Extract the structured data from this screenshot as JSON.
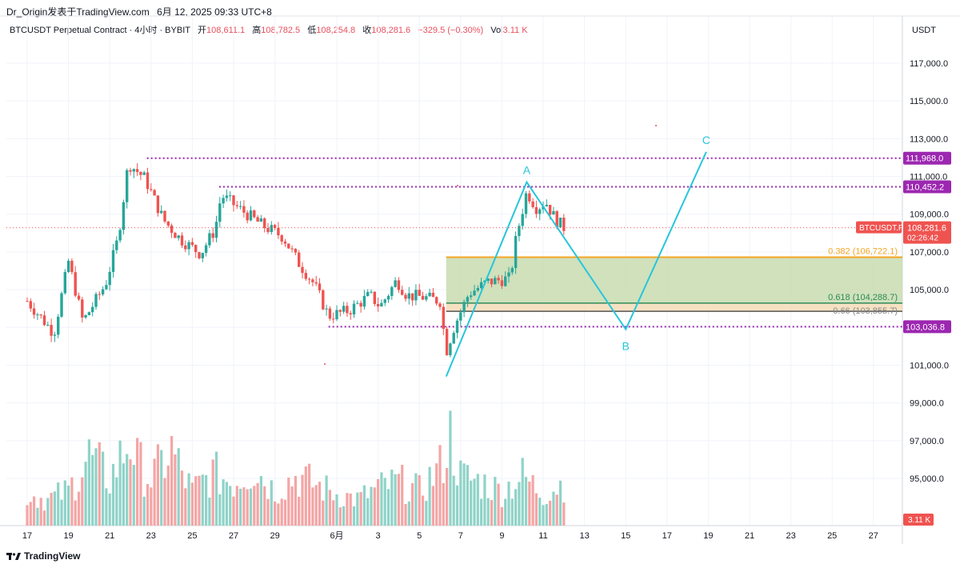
{
  "header": {
    "author": "Dr_Origin发表于TradingView.com",
    "datetime": "6月 12, 2025 09:33 UTC+8"
  },
  "legend": {
    "symbol": "BTCUSDT Perpetual Contract · 4小时 · BYBIT",
    "open_label": "开",
    "open": "108,611.1",
    "high_label": "高",
    "high": "108,782.5",
    "low_label": "低",
    "low": "108,254.8",
    "close_label": "收",
    "close": "108,281.6",
    "change": "−329.5 (−0.30%)",
    "vol_label": "Vol",
    "vol": "3.11 K"
  },
  "footer": {
    "brand": "TradingView"
  },
  "colors": {
    "up": "#26a69a",
    "down": "#ef5350",
    "vol_up": "#8fd3c8",
    "vol_down": "#f4a5a5",
    "pattern": "#26c6da",
    "fib_382": "#f5a623",
    "fib_618": "#2e8b57",
    "fib_66": "#555555",
    "zone_fill": "#c8dcb0",
    "level_line": "#9c27b0",
    "grid": "#f0f3fa"
  },
  "chart_data": {
    "type": "candlestick",
    "symbol": "BTCUSDT.P",
    "timeframe": "4小时",
    "currency_label": "USDT",
    "ylim": [
      92500,
      119500
    ],
    "y_ticks": [
      {
        "value": 117000,
        "label": "117,000.0"
      },
      {
        "value": 115000,
        "label": "115,000.0"
      },
      {
        "value": 113000,
        "label": "113,000.0"
      },
      {
        "value": 111000,
        "label": "111,000.0"
      },
      {
        "value": 109000,
        "label": "109,000.0"
      },
      {
        "value": 107000,
        "label": "107,000.0"
      },
      {
        "value": 105000,
        "label": "105,000.0"
      },
      {
        "value": 103000,
        "label": "103,000.0"
      },
      {
        "value": 101000,
        "label": "101,000.0"
      },
      {
        "value": 99000,
        "label": "99,000.0"
      },
      {
        "value": 97000,
        "label": "97,000.0"
      },
      {
        "value": 95000,
        "label": "95,000.0"
      }
    ],
    "x_ticks": [
      {
        "day": 0,
        "label": "17"
      },
      {
        "day": 2,
        "label": "19"
      },
      {
        "day": 4,
        "label": "21"
      },
      {
        "day": 6,
        "label": "23"
      },
      {
        "day": 8,
        "label": "25"
      },
      {
        "day": 10,
        "label": "27"
      },
      {
        "day": 12,
        "label": "29"
      },
      {
        "day": 15,
        "label": "6月"
      },
      {
        "day": 17,
        "label": "3"
      },
      {
        "day": 19,
        "label": "5"
      },
      {
        "day": 21,
        "label": "7"
      },
      {
        "day": 23,
        "label": "9"
      },
      {
        "day": 25,
        "label": "11"
      },
      {
        "day": 27,
        "label": "13"
      },
      {
        "day": 29,
        "label": "15"
      },
      {
        "day": 31,
        "label": "17"
      },
      {
        "day": 33,
        "label": "19"
      },
      {
        "day": 35,
        "label": "21"
      },
      {
        "day": 37,
        "label": "23"
      },
      {
        "day": 39,
        "label": "25"
      },
      {
        "day": 41,
        "label": "27"
      }
    ],
    "price_path": [
      [
        0,
        104400
      ],
      [
        1.3,
        102700
      ],
      [
        2.0,
        106500
      ],
      [
        2.7,
        103300
      ],
      [
        3.8,
        105300
      ],
      [
        4.4,
        107700
      ],
      [
        4.9,
        111700
      ],
      [
        5.7,
        110900
      ],
      [
        6.6,
        108700
      ],
      [
        7.4,
        107700
      ],
      [
        8.4,
        106900
      ],
      [
        9.1,
        108200
      ],
      [
        9.4,
        110000
      ],
      [
        10.4,
        109200
      ],
      [
        11.4,
        108400
      ],
      [
        12.4,
        107800
      ],
      [
        13.1,
        106500
      ],
      [
        13.9,
        105300
      ],
      [
        14.6,
        103600
      ],
      [
        15.6,
        103900
      ],
      [
        16.6,
        104700
      ],
      [
        17.1,
        104100
      ],
      [
        17.9,
        105500
      ],
      [
        18.4,
        104700
      ],
      [
        19.2,
        104600
      ],
      [
        20.0,
        104400
      ],
      [
        20.3,
        101700
      ],
      [
        20.7,
        103100
      ],
      [
        21.4,
        104800
      ],
      [
        22.3,
        105400
      ],
      [
        23.4,
        105600
      ],
      [
        23.7,
        107800
      ],
      [
        24.2,
        110200
      ],
      [
        24.7,
        109300
      ],
      [
        25.1,
        109700
      ],
      [
        25.6,
        108700
      ],
      [
        26.0,
        108300
      ]
    ],
    "volume_ylim": [
      0,
      400
    ],
    "volume_path": [
      [
        0,
        110
      ],
      [
        1,
        90
      ],
      [
        2,
        120
      ],
      [
        3,
        240
      ],
      [
        4,
        160
      ],
      [
        5,
        300
      ],
      [
        5.3,
        220
      ],
      [
        6,
        160
      ],
      [
        7,
        260
      ],
      [
        7.5,
        180
      ],
      [
        8,
        120
      ],
      [
        9,
        180
      ],
      [
        10,
        150
      ],
      [
        11,
        200
      ],
      [
        12,
        120
      ],
      [
        13,
        170
      ],
      [
        14,
        140
      ],
      [
        15,
        110
      ],
      [
        16,
        90
      ],
      [
        17,
        130
      ],
      [
        18,
        150
      ],
      [
        19,
        120
      ],
      [
        20,
        200
      ],
      [
        20.5,
        310
      ],
      [
        21,
        170
      ],
      [
        22,
        150
      ],
      [
        23,
        120
      ],
      [
        24,
        170
      ],
      [
        25,
        110
      ],
      [
        26,
        150
      ]
    ],
    "last_price": 108281.6,
    "last_price_label": "108,281.6",
    "last_price_symbol": "BTCUSDT.P",
    "countdown": "02:26:42",
    "volume_label": "3.11 K",
    "levels": [
      {
        "value": 111968.0,
        "label": "111,968.0",
        "from_day": 5.8
      },
      {
        "value": 110452.2,
        "label": "110,452.2",
        "from_day": 9.3
      },
      {
        "value": 103036.8,
        "label": "103,036.8",
        "from_day": 14.6
      }
    ],
    "fib_zone": {
      "from_day": 20.3,
      "levels": [
        {
          "ratio": "0.382",
          "value": 106722.1,
          "label": "0.382 (106,722.1)"
        },
        {
          "ratio": "0.618",
          "value": 104288.7,
          "label": "0.618 (104,288.7)"
        },
        {
          "ratio": "0.66",
          "value": 103855.7,
          "label": "0.66 (103,855.7)"
        }
      ]
    },
    "abc_pattern": {
      "points": [
        {
          "label": "",
          "day": 20.3,
          "value": 100400
        },
        {
          "label": "A",
          "day": 24.2,
          "value": 110700
        },
        {
          "label": "B",
          "day": 29.0,
          "value": 102900
        },
        {
          "label": "C",
          "day": 32.9,
          "value": 112300
        }
      ]
    }
  }
}
